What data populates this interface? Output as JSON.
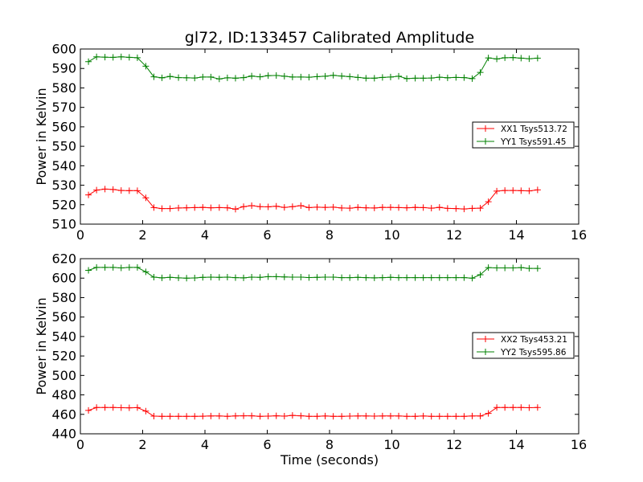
{
  "figure": {
    "title": "gl72, ID:133457 Calibrated Amplitude"
  },
  "chart_data": [
    {
      "type": "line",
      "title": "gl72, ID:133457 Calibrated Amplitude",
      "xlabel": "",
      "ylabel": "Power in Kelvin",
      "xlim": [
        0,
        16
      ],
      "ylim": [
        510,
        600
      ],
      "xticks": [
        0,
        2,
        4,
        6,
        8,
        10,
        12,
        14,
        16
      ],
      "yticks": [
        510,
        520,
        530,
        540,
        550,
        560,
        570,
        580,
        590,
        600
      ],
      "grid": false,
      "legend_position": "right",
      "x": [
        0.26,
        0.52,
        0.79,
        1.05,
        1.31,
        1.57,
        1.83,
        2.1,
        2.36,
        2.62,
        2.88,
        3.15,
        3.41,
        3.67,
        3.93,
        4.19,
        4.46,
        4.72,
        4.98,
        5.24,
        5.5,
        5.77,
        6.03,
        6.29,
        6.55,
        6.81,
        7.08,
        7.34,
        7.6,
        7.86,
        8.12,
        8.39,
        8.65,
        8.91,
        9.17,
        9.44,
        9.7,
        9.96,
        10.22,
        10.48,
        10.75,
        11.01,
        11.27,
        11.53,
        11.79,
        12.06,
        12.32,
        12.58,
        12.84,
        13.1,
        13.37,
        13.63,
        13.89,
        14.15,
        14.41,
        14.68
      ],
      "series": [
        {
          "name": "XX1 Tsys513.72",
          "color": "#ff0000",
          "values": [
            525,
            527.5,
            528,
            527.8,
            527.3,
            527.2,
            527.2,
            523.5,
            518.5,
            518,
            518,
            518.3,
            518.4,
            518.5,
            518.6,
            518.4,
            518.5,
            518.4,
            517.7,
            519,
            519.5,
            519,
            518.9,
            519.2,
            518.6,
            519,
            519.5,
            518.5,
            518.7,
            518.6,
            518.7,
            518.3,
            518.2,
            518.6,
            518.4,
            518.3,
            518.6,
            518.6,
            518.5,
            518.4,
            518.6,
            518.5,
            518.2,
            518.6,
            518.1,
            518,
            517.8,
            518.1,
            518.2,
            521.5,
            527,
            527.3,
            527.3,
            527.2,
            527.1,
            527.6
          ]
        },
        {
          "name": "YY1 Tsys591.45",
          "color": "#008000",
          "values": [
            593.5,
            596,
            595.8,
            595.7,
            596,
            595.7,
            595.5,
            591.2,
            585.7,
            585.2,
            585.9,
            585.3,
            585.2,
            585.1,
            585.6,
            585.6,
            584.6,
            585.2,
            585,
            585.3,
            586.1,
            585.7,
            586.3,
            586.4,
            586,
            585.6,
            585.6,
            585.5,
            585.8,
            586,
            586.5,
            586.1,
            585.8,
            585.4,
            585,
            585,
            585.4,
            585.6,
            586,
            584.8,
            585,
            585,
            585.1,
            585.5,
            585.2,
            585.4,
            585.3,
            584.8,
            588,
            595.4,
            594.9,
            595.5,
            595.6,
            595.3,
            595,
            595.3
          ]
        }
      ]
    },
    {
      "type": "line",
      "title": "",
      "xlabel": "Time (seconds)",
      "ylabel": "Power in Kelvin",
      "xlim": [
        0,
        16
      ],
      "ylim": [
        440,
        620
      ],
      "xticks": [
        0,
        2,
        4,
        6,
        8,
        10,
        12,
        14,
        16
      ],
      "yticks": [
        440,
        460,
        480,
        500,
        520,
        540,
        560,
        580,
        600,
        620
      ],
      "grid": false,
      "legend_position": "right",
      "x": [
        0.26,
        0.52,
        0.79,
        1.05,
        1.31,
        1.57,
        1.83,
        2.1,
        2.36,
        2.62,
        2.88,
        3.15,
        3.41,
        3.67,
        3.93,
        4.19,
        4.46,
        4.72,
        4.98,
        5.24,
        5.5,
        5.77,
        6.03,
        6.29,
        6.55,
        6.81,
        7.08,
        7.34,
        7.6,
        7.86,
        8.12,
        8.39,
        8.65,
        8.91,
        9.17,
        9.44,
        9.7,
        9.96,
        10.22,
        10.48,
        10.75,
        11.01,
        11.27,
        11.53,
        11.79,
        12.06,
        12.32,
        12.58,
        12.84,
        13.1,
        13.37,
        13.63,
        13.89,
        14.15,
        14.41,
        14.68
      ],
      "series": [
        {
          "name": "XX2 Tsys453.21",
          "color": "#ff0000",
          "values": [
            464,
            467,
            467,
            467,
            466.8,
            466.7,
            466.9,
            463.3,
            458.2,
            458,
            458,
            458,
            458,
            458,
            458.1,
            458.3,
            458.3,
            458,
            458.4,
            458.5,
            458.5,
            458,
            458.2,
            458.5,
            458.2,
            458.9,
            458.5,
            458,
            458,
            458.3,
            458,
            458,
            458.2,
            458.3,
            458.3,
            458.2,
            458.3,
            458.3,
            458.3,
            458,
            458,
            458.3,
            458,
            458,
            458,
            458,
            458,
            458.3,
            458.3,
            461,
            467,
            467,
            467,
            467,
            466.8,
            467
          ]
        },
        {
          "name": "YY2 Tsys595.86",
          "color": "#008000",
          "values": [
            608,
            611,
            611,
            611,
            610.5,
            611,
            611,
            606.5,
            601,
            600.3,
            600.8,
            600.3,
            600,
            600.2,
            600.8,
            601,
            600.8,
            601,
            600.5,
            600.3,
            601,
            600.8,
            601.5,
            601.5,
            601.2,
            601,
            601,
            600.6,
            600.8,
            601,
            601,
            600.5,
            600.5,
            600.8,
            600.5,
            600.3,
            600.5,
            600.8,
            600.5,
            600.5,
            600.5,
            600.5,
            600.5,
            600.5,
            600.5,
            600.5,
            600.5,
            600,
            603.5,
            610.8,
            610.5,
            610.5,
            610.5,
            610.8,
            610,
            610
          ]
        }
      ]
    }
  ]
}
